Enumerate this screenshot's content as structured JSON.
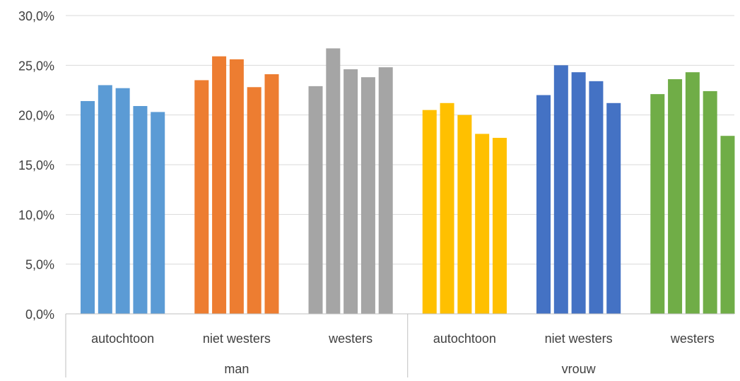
{
  "chart_data": {
    "type": "bar",
    "title": "",
    "xlabel": "",
    "ylabel": "",
    "ylim": [
      0,
      30
    ],
    "ytick_values": [
      0,
      5,
      10,
      15,
      20,
      25,
      30
    ],
    "ytick_labels": [
      "0,0%",
      "5,0%",
      "10,0%",
      "15,0%",
      "20,0%",
      "25,0%",
      "30,0%"
    ],
    "grid": true,
    "legend": "none",
    "groups": [
      {
        "label": "man",
        "subgroups": [
          {
            "label": "autochtoon",
            "color": "#5B9BD5",
            "values": [
              21.4,
              23.0,
              22.7,
              20.9,
              20.3
            ]
          },
          {
            "label": "niet westers",
            "color": "#ED7D31",
            "values": [
              23.5,
              25.9,
              25.6,
              22.8,
              24.1
            ]
          },
          {
            "label": "westers",
            "color": "#A5A5A5",
            "values": [
              22.9,
              26.7,
              24.6,
              23.8,
              24.8
            ]
          }
        ]
      },
      {
        "label": "vrouw",
        "subgroups": [
          {
            "label": "autochtoon",
            "color": "#FFC000",
            "values": [
              20.5,
              21.2,
              20.0,
              18.1,
              17.7
            ]
          },
          {
            "label": "niet westers",
            "color": "#4472C4",
            "values": [
              22.0,
              25.0,
              24.3,
              23.4,
              21.2
            ]
          },
          {
            "label": "westers",
            "color": "#70AD47",
            "values": [
              22.1,
              23.6,
              24.3,
              22.4,
              17.9
            ]
          }
        ]
      }
    ]
  }
}
